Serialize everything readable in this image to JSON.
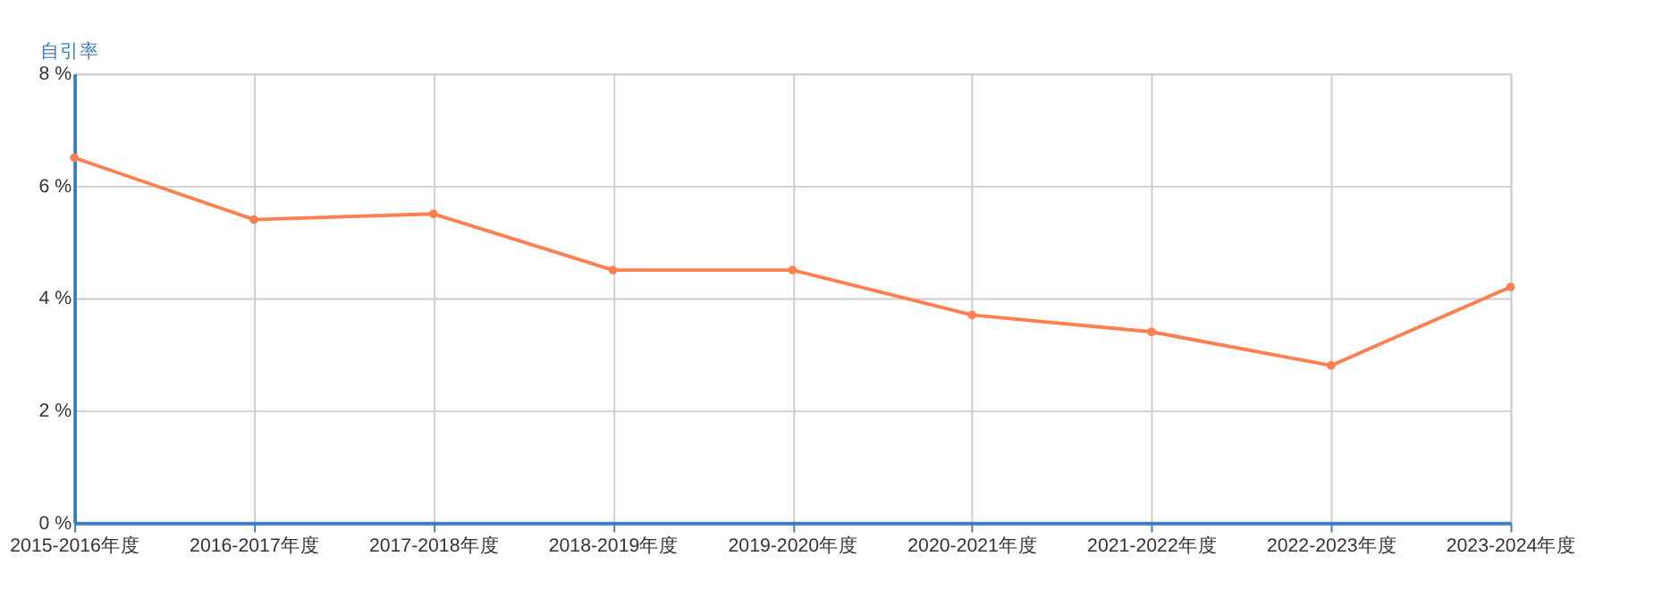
{
  "chart_data": {
    "type": "line",
    "ylabel": "自引率",
    "categories": [
      "2015-2016年度",
      "2016-2017年度",
      "2017-2018年度",
      "2018-2019年度",
      "2019-2020年度",
      "2020-2021年度",
      "2021-2022年度",
      "2022-2023年度",
      "2023-2024年度"
    ],
    "series": [
      {
        "color": "#ff7f50",
        "values": [
          6.5,
          5.4,
          5.5,
          4.5,
          4.5,
          3.7,
          3.4,
          2.8,
          4.2
        ]
      }
    ],
    "ylim": [
      0,
      8
    ],
    "yticks": [
      {
        "value": 0,
        "label": "0 %"
      },
      {
        "value": 2,
        "label": "2 %"
      },
      {
        "value": 4,
        "label": "4 %"
      },
      {
        "value": 6,
        "label": "6 %"
      },
      {
        "value": 8,
        "label": "8 %"
      }
    ],
    "grid": true,
    "marker": "circle",
    "line_style": "solid"
  }
}
